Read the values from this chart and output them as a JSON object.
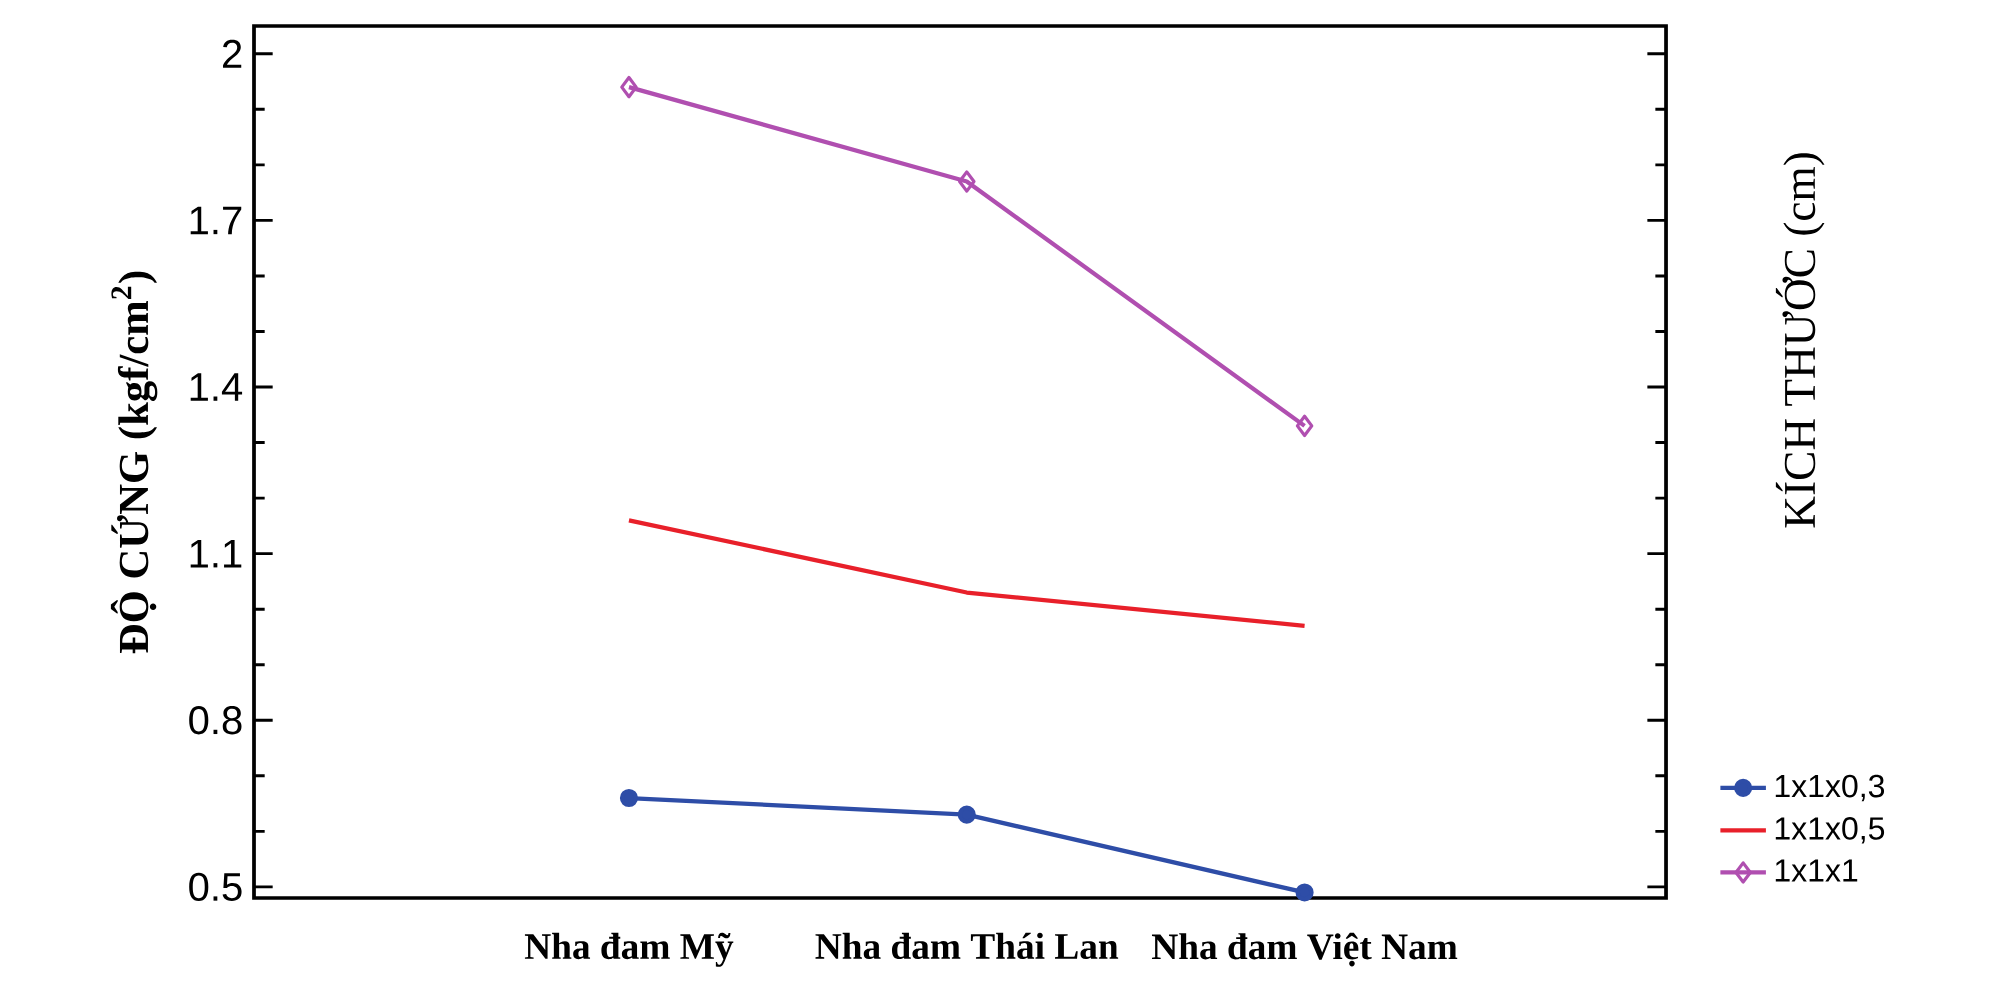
{
  "chart_data": {
    "type": "line",
    "ylabel": "ĐỘ CỨNG (kgf/cm$^{2}$)",
    "legend_title": "KÍCH THƯỚC (cm)",
    "categories": [
      "Nha đam Mỹ",
      "Nha đam Thái Lan",
      "Nha đam Việt Nam"
    ],
    "series": [
      {
        "name": "1x1x0,3",
        "color": "#2e4da7",
        "marker": "circle",
        "values": [
          0.66,
          0.63,
          0.49
        ]
      },
      {
        "name": "1x1x0,5",
        "color": "#e8202a",
        "marker": "none",
        "values": [
          1.16,
          1.03,
          0.97
        ]
      },
      {
        "name": "1x1x1",
        "color": "#b04fb0",
        "marker": "diamond",
        "values": [
          1.94,
          1.77,
          1.33
        ]
      }
    ],
    "ylim": [
      0.48,
      2.05
    ],
    "yticks": [
      0.5,
      0.8,
      1.1,
      1.4,
      1.7,
      2
    ],
    "grid": false,
    "legend": "bottom right",
    "line_style": "solid"
  }
}
